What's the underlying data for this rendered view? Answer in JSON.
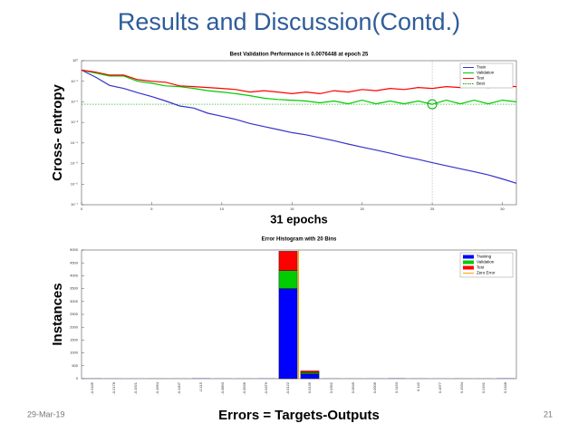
{
  "slide": {
    "title": "Results and Discussion(Contd.)",
    "date": "29-Mar-19",
    "page": "21"
  },
  "chart_data": [
    {
      "type": "line",
      "title": "Best Validation Performance is 0.0076448 at epoch 25",
      "xlabel": "31 epochs",
      "ylabel": "Cross- entropy",
      "log_y": true,
      "x": [
        0,
        1,
        2,
        3,
        4,
        5,
        6,
        7,
        8,
        9,
        10,
        11,
        12,
        13,
        14,
        15,
        16,
        17,
        18,
        19,
        20,
        21,
        22,
        23,
        24,
        25,
        26,
        27,
        28,
        29,
        30,
        31
      ],
      "xlim": [
        0,
        31
      ],
      "xticks": [
        0,
        5,
        10,
        15,
        20,
        25,
        30
      ],
      "ylim": [
        1e-07,
        1
      ],
      "yticks": [
        {
          "value": 1,
          "label": "10⁰"
        },
        {
          "value": 0.1,
          "label": "10⁻¹"
        },
        {
          "value": 0.01,
          "label": "10⁻²"
        },
        {
          "value": 0.001,
          "label": "10⁻³"
        },
        {
          "value": 0.0001,
          "label": "10⁻⁴"
        },
        {
          "value": 1e-05,
          "label": "10⁻⁵"
        },
        {
          "value": 1e-06,
          "label": "10⁻⁶"
        },
        {
          "value": 1e-07,
          "label": "10⁻⁷"
        }
      ],
      "series": [
        {
          "name": "Train",
          "color": "#3333cc",
          "values": [
            0.35,
            0.16,
            0.063,
            0.045,
            0.028,
            0.018,
            0.011,
            0.0063,
            0.005,
            0.0028,
            0.002,
            0.0014,
            0.00089,
            0.00063,
            0.00045,
            0.00032,
            0.00025,
            0.00018,
            0.00013,
            8.9e-05,
            6.3e-05,
            4.5e-05,
            3.2e-05,
            2.2e-05,
            1.6e-05,
            1.1e-05,
            7.9e-06,
            5.6e-06,
            4e-06,
            2.8e-06,
            1.8e-06,
            1.1e-06
          ]
        },
        {
          "name": "Validation",
          "color": "#00cc00",
          "values": [
            0.35,
            0.25,
            0.18,
            0.18,
            0.1,
            0.08,
            0.06,
            0.055,
            0.045,
            0.035,
            0.03,
            0.025,
            0.02,
            0.015,
            0.013,
            0.012,
            0.011,
            0.009,
            0.011,
            0.008,
            0.012,
            0.008,
            0.011,
            0.008,
            0.011,
            0.0076448,
            0.012,
            0.008,
            0.012,
            0.008,
            0.012,
            0.01
          ]
        },
        {
          "name": "Test",
          "color": "#ff0000",
          "values": [
            0.35,
            0.28,
            0.2,
            0.2,
            0.12,
            0.1,
            0.09,
            0.06,
            0.055,
            0.05,
            0.045,
            0.04,
            0.03,
            0.035,
            0.03,
            0.025,
            0.03,
            0.025,
            0.035,
            0.03,
            0.04,
            0.035,
            0.045,
            0.04,
            0.05,
            0.045,
            0.055,
            0.05,
            0.06,
            0.05,
            0.06,
            0.055
          ]
        }
      ],
      "best": {
        "name": "Best",
        "color": "#00aa00",
        "epoch": 25,
        "value": 0.0076448
      }
    },
    {
      "type": "histogram",
      "title": "Error Histogram with 20 Bins",
      "xlabel": "Errors = Targets-Outputs",
      "ylabel": "Instances",
      "categories": [
        "-0.2435",
        "-0.2178",
        "-0.1921",
        "-0.1664",
        "-0.1407",
        "-0.115",
        "-0.0893",
        "-0.0636",
        "-0.0379",
        "-0.0122",
        "0.0135",
        "0.0392",
        "0.0649",
        "0.0906",
        "0.1163",
        "0.142",
        "0.1677",
        "0.1934",
        "0.2191",
        "0.2448"
      ],
      "ylim": [
        0,
        5000
      ],
      "yticks": [
        0,
        500,
        1000,
        1500,
        2000,
        2500,
        3000,
        3500,
        4000,
        4500,
        5000
      ],
      "series": [
        {
          "name": "Training",
          "color": "#0000ff",
          "values": [
            5,
            3,
            2,
            3,
            2,
            8,
            3,
            2,
            5,
            3500,
            180,
            3,
            2,
            3,
            8,
            3,
            2,
            3,
            2,
            8
          ]
        },
        {
          "name": "Validation",
          "color": "#00cc00",
          "values": [
            1,
            0,
            0,
            1,
            0,
            2,
            0,
            0,
            1,
            700,
            60,
            0,
            1,
            0,
            2,
            0,
            0,
            1,
            0,
            2
          ]
        },
        {
          "name": "Test",
          "color": "#ff0000",
          "values": [
            1,
            0,
            0,
            0,
            1,
            2,
            0,
            1,
            0,
            750,
            60,
            1,
            0,
            0,
            2,
            1,
            0,
            0,
            1,
            2
          ]
        }
      ],
      "zero_error": {
        "name": "Zero Error",
        "color": "#ffa500",
        "value": 0
      }
    }
  ]
}
